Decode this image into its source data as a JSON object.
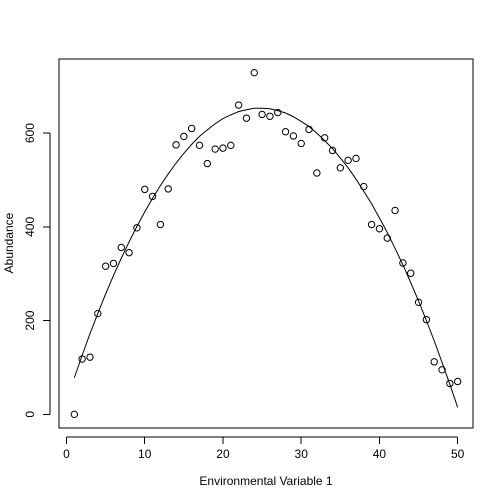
{
  "chart_data": {
    "type": "scatter",
    "xlabel": "Environmental Variable 1",
    "ylabel": "Abundance",
    "xlim": [
      -0.96,
      51.96
    ],
    "ylim": [
      -29.2,
      758.2
    ],
    "xticks": [
      0,
      10,
      20,
      30,
      40,
      50
    ],
    "yticks": [
      0,
      200,
      400,
      600
    ],
    "grid": false,
    "legend": "none",
    "series": [
      {
        "type": "scatter",
        "marker": "open-circle",
        "x": [
          1,
          2,
          3,
          4,
          5,
          6,
          7,
          8,
          9,
          10,
          11,
          12,
          13,
          14,
          15,
          16,
          17,
          18,
          19,
          20,
          21,
          22,
          23,
          24,
          25,
          26,
          27,
          28,
          29,
          30,
          31,
          32,
          33,
          34,
          35,
          36,
          37,
          38,
          39,
          40,
          41,
          42,
          43,
          44,
          45,
          46,
          47,
          48,
          49,
          50
        ],
        "y": [
          0,
          118,
          122,
          215,
          316,
          322,
          356,
          345,
          398,
          480,
          465,
          405,
          481,
          575,
          593,
          610,
          574,
          535,
          566,
          568,
          574,
          660,
          632,
          729,
          640,
          636,
          644,
          603,
          594,
          578,
          608,
          515,
          590,
          563,
          526,
          542,
          546,
          486,
          405,
          396,
          376,
          435,
          323,
          301,
          239,
          202,
          112,
          95,
          66,
          70
        ]
      },
      {
        "type": "line",
        "style": "solid",
        "x": [
          1,
          2,
          3,
          4,
          5,
          6,
          7,
          8,
          9,
          10,
          11,
          12,
          13,
          14,
          15,
          16,
          17,
          18,
          19,
          20,
          21,
          22,
          23,
          24,
          25,
          26,
          27,
          28,
          29,
          30,
          31,
          32,
          33,
          34,
          35,
          36,
          37,
          38,
          39,
          40,
          41,
          42,
          43,
          44,
          45,
          46,
          47,
          48,
          49,
          50
        ],
        "y": [
          78,
          126,
          172,
          215,
          257,
          296,
          333,
          368,
          401,
          432,
          461,
          488,
          513,
          536,
          557,
          576,
          593,
          607,
          620,
          631,
          639,
          646,
          650,
          653,
          653,
          652,
          648,
          643,
          635,
          625,
          614,
          600,
          584,
          567,
          547,
          526,
          502,
          476,
          449,
          419,
          388,
          354,
          319,
          281,
          242,
          200,
          157,
          111,
          64,
          15
        ]
      }
    ]
  }
}
